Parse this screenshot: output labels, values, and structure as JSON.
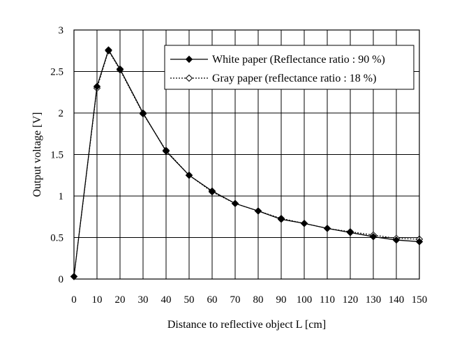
{
  "chart_data": {
    "type": "line",
    "title": "",
    "xlabel": "Distance to reflective object L [cm]",
    "ylabel": "Output voltage [V]",
    "xlim": [
      0,
      150
    ],
    "ylim": [
      0,
      3
    ],
    "xticks": [
      0,
      10,
      20,
      30,
      40,
      50,
      60,
      70,
      80,
      90,
      100,
      110,
      120,
      130,
      140,
      150
    ],
    "yticks": [
      0,
      0.5,
      1,
      1.5,
      2,
      2.5,
      3
    ],
    "grid": true,
    "legend_position": "top-right",
    "series": [
      {
        "name": "White paper (Reflectance ratio : 90 %)",
        "marker": "filled-diamond",
        "line": "solid",
        "x": [
          0,
          10,
          15,
          20,
          30,
          40,
          50,
          60,
          70,
          80,
          90,
          100,
          110,
          120,
          130,
          140,
          150
        ],
        "y": [
          0.03,
          2.32,
          2.76,
          2.53,
          2.0,
          1.54,
          1.25,
          1.06,
          0.91,
          0.82,
          0.72,
          0.67,
          0.61,
          0.56,
          0.51,
          0.47,
          0.45
        ]
      },
      {
        "name": "Gray paper (reflectance ratio : 18 %)",
        "marker": "open-diamond",
        "line": "dotted",
        "x": [
          0,
          10,
          15,
          20,
          30,
          40,
          50,
          60,
          70,
          80,
          90,
          100,
          110,
          120,
          130,
          140,
          150
        ],
        "y": [
          0.03,
          2.3,
          2.75,
          2.52,
          1.99,
          1.55,
          1.25,
          1.05,
          0.91,
          0.82,
          0.73,
          0.67,
          0.61,
          0.57,
          0.53,
          0.49,
          0.48
        ]
      }
    ]
  }
}
